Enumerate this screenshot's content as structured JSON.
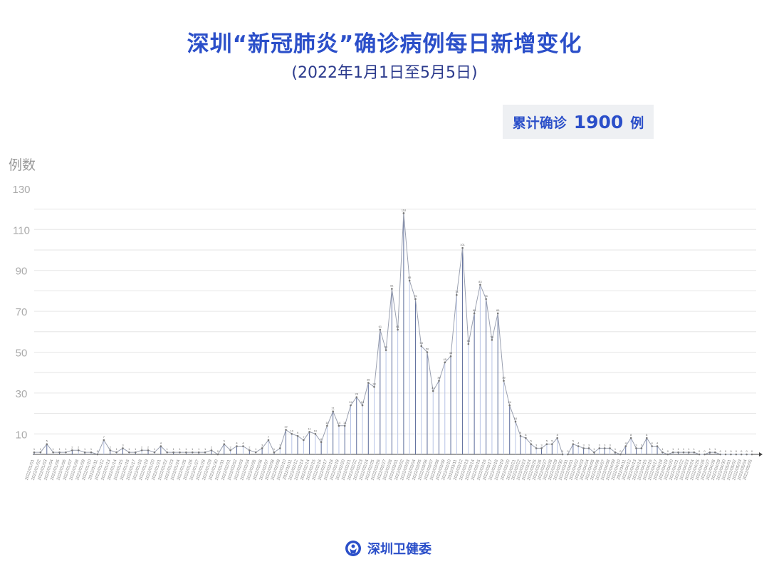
{
  "header": {
    "title": "深圳“新冠肺炎”确诊病例每日新增变化",
    "subtitle": "(2022年1月1日至5月5日)",
    "total_label": "累计确诊",
    "total_value": "1900",
    "total_unit": "例"
  },
  "footer": {
    "org": "深圳卫健委"
  },
  "colors": {
    "accent": "#2b4fc9",
    "line": "#9aa0b0",
    "drop_dark": "#5a6a9a",
    "drop_light": "#b8c4e6",
    "grid": "#e6e6e6"
  },
  "chart_data": {
    "type": "line",
    "title": "深圳“新冠肺炎”确诊病例每日新增变化",
    "ylabel": "例数",
    "xlabel": "",
    "ylim": [
      0,
      130
    ],
    "yticks": [
      10,
      30,
      50,
      70,
      90,
      110,
      130
    ],
    "grid": true,
    "categories": [
      "2022/01/01",
      "2022/01/02",
      "2022/01/03",
      "2022/01/04",
      "2022/01/05",
      "2022/01/06",
      "2022/01/07",
      "2022/01/08",
      "2022/01/09",
      "2022/01/10",
      "2022/01/11",
      "2022/01/12",
      "2022/01/13",
      "2022/01/14",
      "2022/01/15",
      "2022/01/16",
      "2022/01/17",
      "2022/01/18",
      "2022/01/19",
      "2022/01/20",
      "2022/01/21",
      "2022/01/22",
      "2022/01/23",
      "2022/01/24",
      "2022/01/25",
      "2022/01/26",
      "2022/01/27",
      "2022/01/28",
      "2022/01/29",
      "2022/01/30",
      "2022/01/31",
      "2022/02/01",
      "2022/02/02",
      "2022/02/03",
      "2022/02/04",
      "2022/02/05",
      "2022/02/06",
      "2022/02/07",
      "2022/02/08",
      "2022/02/09",
      "2022/02/10",
      "2022/02/11",
      "2022/02/12",
      "2022/02/13",
      "2022/02/14",
      "2022/02/15",
      "2022/02/16",
      "2022/02/17",
      "2022/02/18",
      "2022/02/19",
      "2022/02/20",
      "2022/02/21",
      "2022/02/22",
      "2022/02/23",
      "2022/02/24",
      "2022/02/25",
      "2022/02/26",
      "2022/02/27",
      "2022/02/28",
      "2022/03/01",
      "2022/03/02",
      "2022/03/03",
      "2022/03/04",
      "2022/03/05",
      "2022/03/06",
      "2022/03/07",
      "2022/03/08",
      "2022/03/09",
      "2022/03/10",
      "2022/03/11",
      "2022/03/12",
      "2022/03/13",
      "2022/03/14",
      "2022/03/15",
      "2022/03/16",
      "2022/03/17",
      "2022/03/18",
      "2022/03/19",
      "2022/03/20",
      "2022/03/21",
      "2022/03/22",
      "2022/03/23",
      "2022/03/24",
      "2022/03/25",
      "2022/03/26",
      "2022/03/27",
      "2022/03/28",
      "2022/03/29",
      "2022/03/30",
      "2022/03/31",
      "2022/04/01",
      "2022/04/02",
      "2022/04/03",
      "2022/04/04",
      "2022/04/05",
      "2022/04/06",
      "2022/04/07",
      "2022/04/08",
      "2022/04/09",
      "2022/04/10",
      "2022/04/11",
      "2022/04/12",
      "2022/04/13",
      "2022/04/14",
      "2022/04/15",
      "2022/04/16",
      "2022/04/17",
      "2022/04/18",
      "2022/04/19",
      "2022/04/20",
      "2022/04/21",
      "2022/04/22",
      "2022/04/23",
      "2022/04/24",
      "2022/04/25",
      "2022/04/26",
      "2022/04/27",
      "2022/04/28",
      "2022/04/29",
      "2022/04/30",
      "2022/05/01",
      "2022/05/02",
      "2022/05/03",
      "2022/05/04",
      "2022/05/05"
    ],
    "values": [
      1,
      1,
      5,
      1,
      1,
      1,
      2,
      2,
      1,
      1,
      0,
      7,
      2,
      1,
      3,
      1,
      1,
      2,
      2,
      1,
      4,
      1,
      1,
      1,
      1,
      1,
      1,
      1,
      2,
      0,
      5,
      2,
      4,
      4,
      2,
      1,
      3,
      7,
      1,
      3,
      12,
      10,
      9,
      7,
      11,
      10,
      6,
      14,
      21,
      14,
      14,
      24,
      28,
      24,
      35,
      33,
      61,
      51,
      81,
      61,
      118,
      85,
      76,
      53,
      50,
      31,
      36,
      45,
      48,
      78,
      101,
      54,
      69,
      83,
      76,
      56,
      69,
      36,
      24,
      16,
      9,
      8,
      5,
      3,
      3,
      5,
      5,
      8,
      0,
      0,
      5,
      4,
      3,
      3,
      1,
      3,
      3,
      3,
      1,
      0,
      4,
      8,
      3,
      3,
      8,
      4,
      4,
      1,
      0,
      1,
      1,
      1,
      1,
      1,
      0,
      0,
      1,
      1,
      0,
      0,
      0,
      0,
      0,
      0,
      0
    ]
  }
}
